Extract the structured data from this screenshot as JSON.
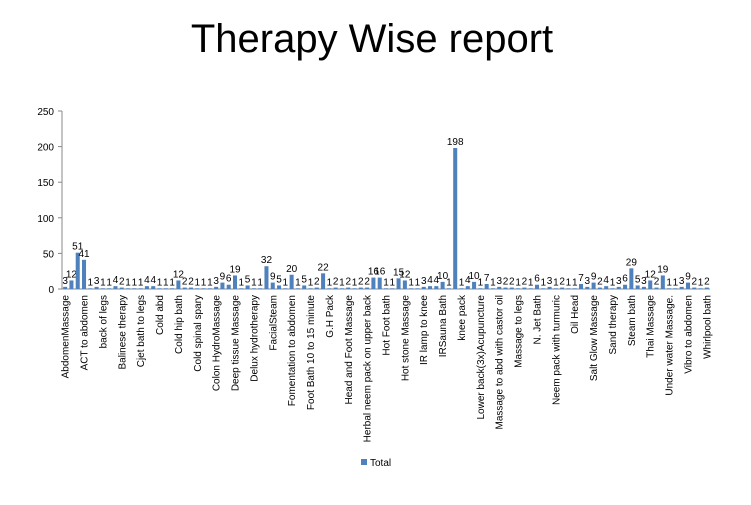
{
  "chart_data": {
    "type": "bar",
    "title": "Therapy Wise report",
    "categories": [
      "AbdomenMassage",
      null,
      null,
      "ACT to abdomen",
      null,
      null,
      "back of legs",
      null,
      null,
      "Balinese therapy",
      null,
      null,
      "Cjet bath to legs",
      null,
      null,
      "Cold abd",
      null,
      null,
      "Cold hip bath",
      null,
      null,
      "Cold spinal spary",
      null,
      null,
      "Colon HydroMassage",
      null,
      null,
      "Deep tissue Massage",
      null,
      null,
      "Delux hydrotherapy",
      null,
      null,
      "FacialSteam",
      null,
      null,
      "Fomentation to abdomen",
      null,
      null,
      "Foot Bath 10 to 15 minute",
      null,
      null,
      "G.H Pack",
      null,
      null,
      "Head and Foot Massage",
      null,
      null,
      "Herbal neem pack on upper back",
      null,
      null,
      "Hot Foot bath",
      null,
      null,
      "Hot stone Massage",
      null,
      null,
      "IR lamp to knee",
      null,
      null,
      "IRSauna Bath",
      null,
      null,
      "knee pack",
      null,
      null,
      "Lower back(3x)Acupuncture",
      null,
      null,
      "Massage to abd with castor oil",
      null,
      null,
      "Massage to legs",
      null,
      null,
      "N. Jet Bath",
      null,
      null,
      "Neem pack with turmuric",
      null,
      null,
      "Oil Head",
      null,
      null,
      "Salt Glow Massage",
      null,
      null,
      "Sand therapy",
      null,
      null,
      "Steam bath",
      null,
      null,
      "Thai Massage",
      null,
      null,
      "Under water Massage.",
      null,
      null,
      "Vibro to abdomen",
      null,
      null,
      "Whirlpool bath"
    ],
    "series": [
      {
        "name": "Total",
        "color": "#4f81bd",
        "values": [
          3,
          12,
          51,
          41,
          1,
          3,
          1,
          1,
          4,
          2,
          1,
          1,
          1,
          4,
          4,
          1,
          1,
          1,
          12,
          2,
          2,
          1,
          1,
          1,
          3,
          9,
          6,
          19,
          1,
          5,
          1,
          1,
          32,
          9,
          5,
          1,
          20,
          1,
          5,
          1,
          2,
          22,
          1,
          2,
          1,
          2,
          1,
          2,
          2,
          16,
          16,
          1,
          1,
          15,
          12,
          1,
          1,
          3,
          4,
          4,
          10,
          1,
          198,
          1,
          4,
          10,
          1,
          7,
          1,
          3,
          2,
          2,
          1,
          2,
          1,
          6,
          1,
          3,
          1,
          2,
          1,
          1,
          7,
          3,
          9,
          2,
          4,
          1,
          3,
          6,
          29,
          5,
          3,
          12,
          2,
          19,
          1,
          1,
          3,
          9,
          2,
          1,
          2
        ]
      }
    ],
    "ylim": [
      0,
      250
    ],
    "yticks": [
      0,
      50,
      100,
      150,
      200,
      250
    ],
    "grid": false,
    "legend": "bottom"
  }
}
